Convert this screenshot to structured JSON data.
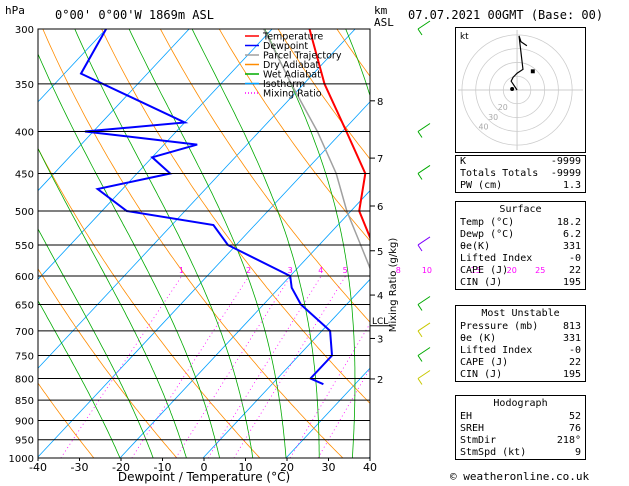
{
  "header": {
    "hpa_label": "hPa",
    "location": "0°00' 0°00'W 1869m ASL",
    "km_label": "km",
    "asl_label": "ASL",
    "datetime": "07.07.2021 00GMT (Base: 00)"
  },
  "legend": [
    {
      "label": "Temperature",
      "color": "#ff0000"
    },
    {
      "label": "Dewpoint",
      "color": "#0000ff"
    },
    {
      "label": "Parcel Trajectory",
      "color": "#a0a0a0"
    },
    {
      "label": "Dry Adiabat",
      "color": "#ff8c00"
    },
    {
      "label": "Wet Adiabat",
      "color": "#00aa00"
    },
    {
      "label": "Isotherm",
      "color": "#00a0ff"
    },
    {
      "label": "Mixing Ratio",
      "color": "#ff00ff"
    }
  ],
  "chart_data": {
    "type": "line",
    "xlabel": "Dewpoint / Temperature (°C)",
    "ylabel": "hPa",
    "ylabel_right": "Mixing Ratio (g/kg)",
    "x_ticks": [
      -40,
      -30,
      -20,
      -10,
      0,
      10,
      20,
      30,
      40
    ],
    "pressure_levels": [
      300,
      350,
      400,
      450,
      500,
      550,
      600,
      650,
      700,
      750,
      800,
      850,
      900,
      950,
      1000
    ],
    "km_ticks": [
      {
        "km": "8",
        "p": 367
      },
      {
        "km": "7",
        "p": 431
      },
      {
        "km": "6",
        "p": 493
      },
      {
        "km": "5",
        "p": 559
      },
      {
        "km": "4",
        "p": 633
      },
      {
        "km": "3",
        "p": 715
      },
      {
        "km": "2",
        "p": 801
      }
    ],
    "lcl": {
      "label": "LCL",
      "p": 690
    },
    "mixing_ratio_labels": [
      "1",
      "2",
      "3",
      "4",
      "5",
      "8",
      "10",
      "15",
      "20",
      "25"
    ],
    "series": [
      {
        "name": "Temperature",
        "color": "#ff0000",
        "points": [
          [
            813,
            18.2
          ],
          [
            780,
            16.5
          ],
          [
            750,
            14.5
          ],
          [
            700,
            11.0
          ],
          [
            650,
            6.5
          ],
          [
            600,
            2.0
          ],
          [
            550,
            -3.5
          ],
          [
            500,
            -9.0
          ],
          [
            450,
            -12.5
          ],
          [
            400,
            -19.5
          ],
          [
            350,
            -27.5
          ],
          [
            300,
            -35.5
          ]
        ]
      },
      {
        "name": "Dewpoint",
        "color": "#0000ff",
        "points": [
          [
            813,
            6.2
          ],
          [
            800,
            4.0
          ],
          [
            750,
            4.0
          ],
          [
            700,
            1.0
          ],
          [
            650,
            -5.5
          ],
          [
            620,
            -8.5
          ],
          [
            600,
            -10.0
          ],
          [
            550,
            -21.0
          ],
          [
            520,
            -25.0
          ],
          [
            500,
            -37.0
          ],
          [
            470,
            -43.0
          ],
          [
            450,
            -36.0
          ],
          [
            430,
            -40.0
          ],
          [
            415,
            -36.0
          ],
          [
            400,
            -51.0
          ],
          [
            390,
            -40.0
          ],
          [
            340,
            -58.0
          ],
          [
            300,
            -60.0
          ]
        ]
      },
      {
        "name": "Parcel Trajectory",
        "color": "#a0a0a0",
        "points": [
          [
            813,
            18.2
          ],
          [
            690,
            7.0
          ],
          [
            650,
            4.0
          ],
          [
            600,
            0.0
          ],
          [
            550,
            -5.0
          ],
          [
            500,
            -10.5
          ],
          [
            450,
            -16.0
          ],
          [
            400,
            -23.0
          ],
          [
            350,
            -31.5
          ],
          [
            300,
            -41.0
          ]
        ]
      }
    ]
  },
  "indices": [
    {
      "label": "K",
      "value": "-9999"
    },
    {
      "label": "Totals Totals",
      "value": "-9999"
    },
    {
      "label": "PW (cm)",
      "value": "1.3"
    }
  ],
  "surface": {
    "title": "Surface",
    "rows": [
      {
        "label": "Temp (°C)",
        "value": "18.2"
      },
      {
        "label": "Dewp (°C)",
        "value": "6.2"
      },
      {
        "label": "θe(K)",
        "value": "331"
      },
      {
        "label": "Lifted Index",
        "value": "-0"
      },
      {
        "label": "CAPE (J)",
        "value": "22"
      },
      {
        "label": "CIN (J)",
        "value": "195"
      }
    ]
  },
  "most_unstable": {
    "title": "Most Unstable",
    "rows": [
      {
        "label": "Pressure (mb)",
        "value": "813"
      },
      {
        "label": "θe (K)",
        "value": "331"
      },
      {
        "label": "Lifted Index",
        "value": "-0"
      },
      {
        "label": "CAPE (J)",
        "value": "22"
      },
      {
        "label": "CIN (J)",
        "value": "195"
      }
    ]
  },
  "hodograph": {
    "title": "Hodograph",
    "box_label": "kt",
    "ring_labels": [
      "40",
      "30",
      "20"
    ],
    "rows": [
      {
        "label": "EH",
        "value": "52"
      },
      {
        "label": "SREH",
        "value": "76"
      },
      {
        "label": "StmDir",
        "value": "218°"
      },
      {
        "label": "StmSpd (kt)",
        "value": "9"
      }
    ]
  },
  "copyright": "© weatheronline.co.uk"
}
